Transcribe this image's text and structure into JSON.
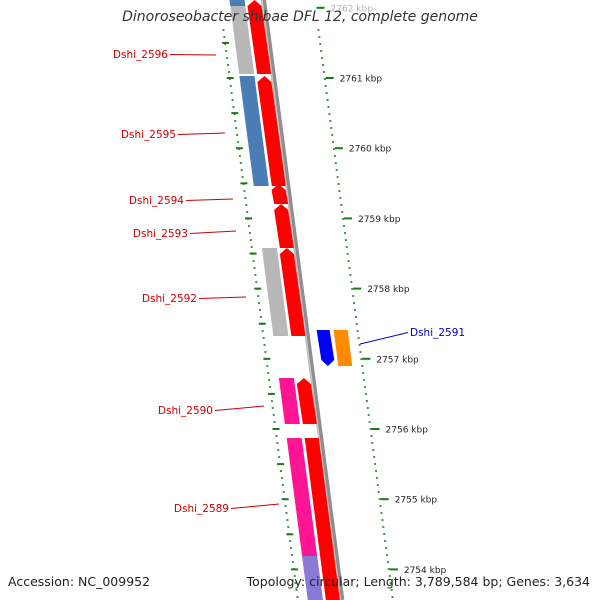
{
  "title": "Dinoroseobacter shibae DFL 12, complete genome",
  "colors": {
    "backbone": "#8e8e8e",
    "tick": "#1a7a1a",
    "tick_label": "#222222",
    "forward_gene": "#ff0000",
    "gene_label_forward": "#cc0000",
    "gene_label_reverse": "#0000cc",
    "cog_blue": "#4a7db5",
    "cog_grey": "#b8b8b8",
    "cog_pink": "#ff1493",
    "cog_purple": "#8a7ad8",
    "cog_orange": "#ff8c00",
    "reverse_gene": "#0000ff"
  },
  "ticks": [
    {
      "label": "2762 kbp",
      "kbp": 2762
    },
    {
      "label": "2761 kbp",
      "kbp": 2761
    },
    {
      "label": "2760 kbp",
      "kbp": 2760
    },
    {
      "label": "2759 kbp",
      "kbp": 2759
    },
    {
      "label": "2758 kbp",
      "kbp": 2758
    },
    {
      "label": "2757 kbp",
      "kbp": 2757
    },
    {
      "label": "2756 kbp",
      "kbp": 2756
    },
    {
      "label": "2755 kbp",
      "kbp": 2755
    },
    {
      "label": "2754 kbp",
      "kbp": 2754
    }
  ],
  "genes": [
    {
      "name": "Dshi_2596",
      "strand": "+",
      "cog": "grey"
    },
    {
      "name": "Dshi_2595",
      "strand": "+",
      "cog": "blue"
    },
    {
      "name": "Dshi_2594",
      "strand": "+",
      "cog": "none"
    },
    {
      "name": "Dshi_2593",
      "strand": "+",
      "cog": "none"
    },
    {
      "name": "Dshi_2592",
      "strand": "+",
      "cog": "grey"
    },
    {
      "name": "Dshi_2591",
      "strand": "-",
      "cog": "orange"
    },
    {
      "name": "Dshi_2590",
      "strand": "+",
      "cog": "pink"
    },
    {
      "name": "Dshi_2589",
      "strand": "+",
      "cog": "pink"
    }
  ],
  "footer": {
    "accession": "Accession: NC_009952",
    "topology": "Topology: circular; Length: 3,789,584 bp; Genes: 3,634"
  }
}
